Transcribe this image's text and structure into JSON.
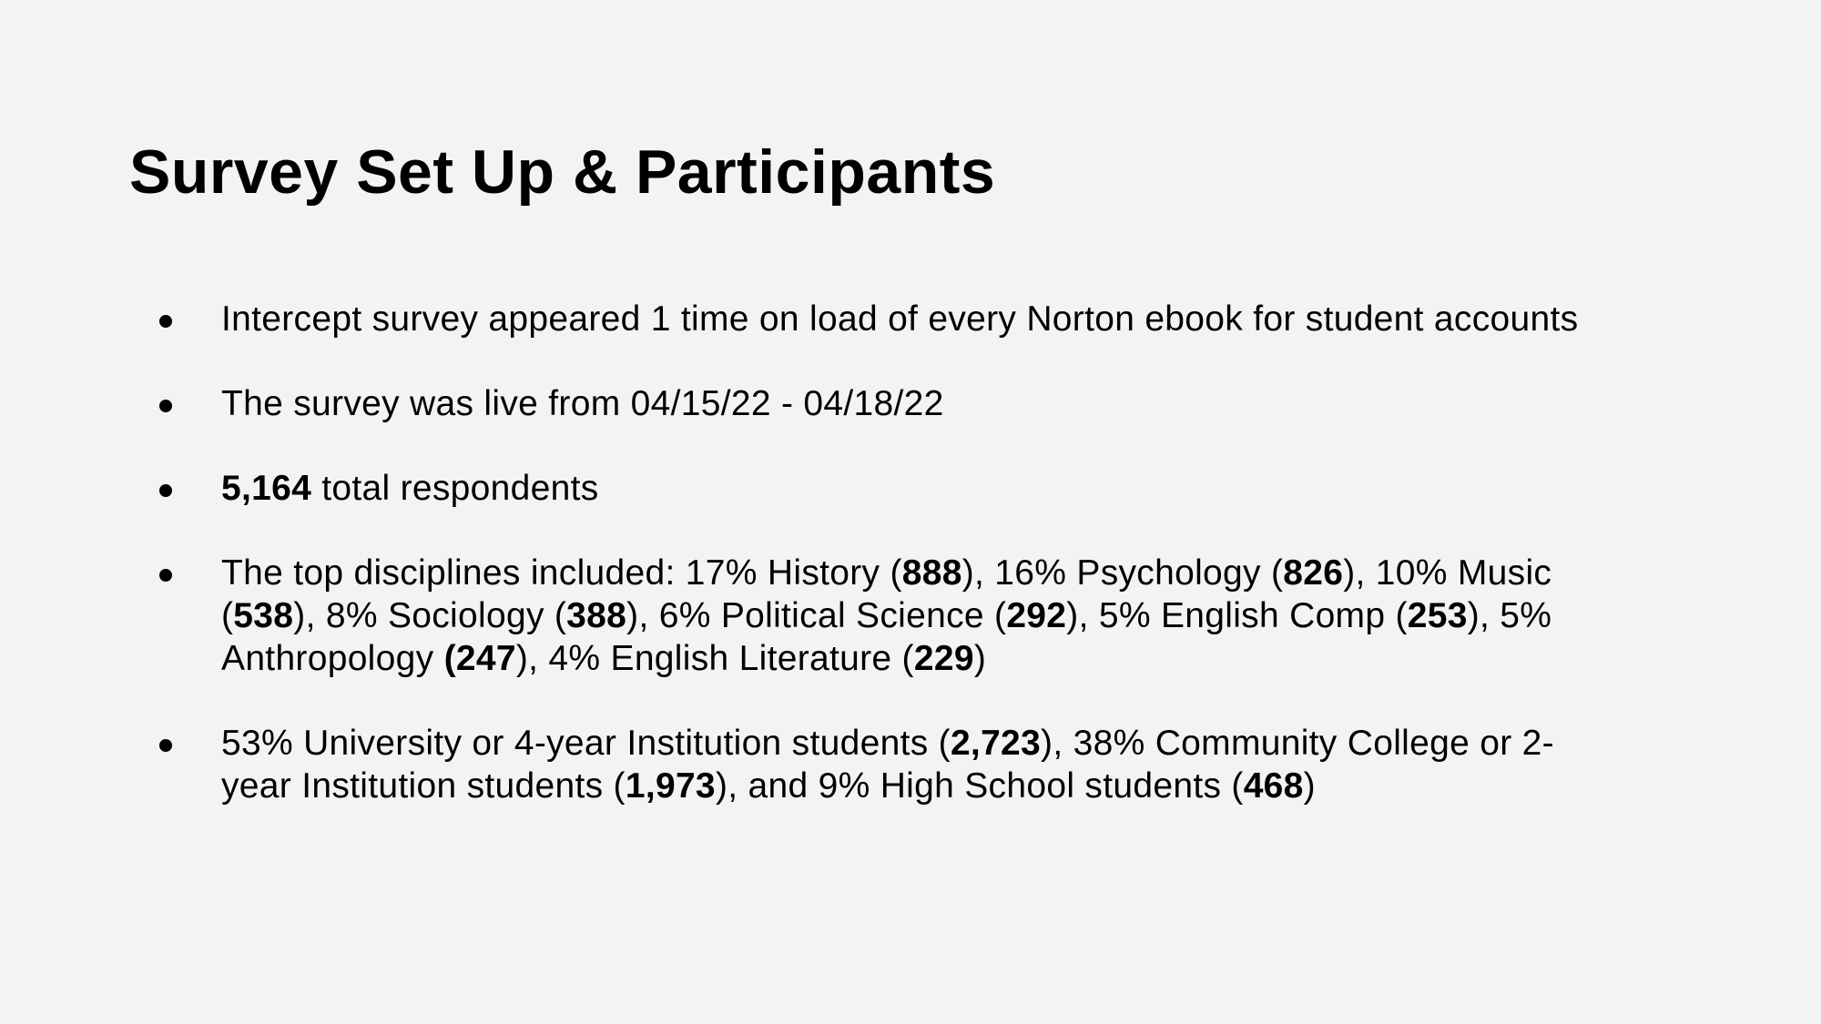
{
  "slide": {
    "title": "Survey Set Up & Participants",
    "bullets": [
      {
        "parts": [
          {
            "text": "Intercept survey appeared 1 time on load of every Norton ebook for student accounts",
            "bold": false
          }
        ]
      },
      {
        "parts": [
          {
            "text": "The survey was live from 04/15/22 - 04/18/22",
            "bold": false
          }
        ]
      },
      {
        "parts": [
          {
            "text": "5,164",
            "bold": true
          },
          {
            "text": " total respondents",
            "bold": false
          }
        ]
      },
      {
        "parts": [
          {
            "text": "The top disciplines included: 17% History (",
            "bold": false
          },
          {
            "text": "888",
            "bold": true
          },
          {
            "text": "), 16% Psychology (",
            "bold": false
          },
          {
            "text": "826",
            "bold": true
          },
          {
            "text": "), 10% Music (",
            "bold": false
          },
          {
            "text": "538",
            "bold": true
          },
          {
            "text": "), 8% Sociology (",
            "bold": false
          },
          {
            "text": "388",
            "bold": true
          },
          {
            "text": "), 6% Political Science (",
            "bold": false
          },
          {
            "text": "292",
            "bold": true
          },
          {
            "text": "), 5% English Comp (",
            "bold": false
          },
          {
            "text": "253",
            "bold": true
          },
          {
            "text": "), 5% Anthropology ",
            "bold": false
          },
          {
            "text": "(247",
            "bold": true
          },
          {
            "text": "),  4% English Literature (",
            "bold": false
          },
          {
            "text": "229",
            "bold": true
          },
          {
            "text": ")",
            "bold": false
          }
        ]
      },
      {
        "parts": [
          {
            "text": "53% University or 4-year Institution students (",
            "bold": false
          },
          {
            "text": "2,723",
            "bold": true
          },
          {
            "text": "), 38% Community College or 2-year Institution students (",
            "bold": false
          },
          {
            "text": "1,973",
            "bold": true
          },
          {
            "text": "), and 9% High School students (",
            "bold": false
          },
          {
            "text": "468",
            "bold": true
          },
          {
            "text": ")",
            "bold": false
          }
        ]
      }
    ]
  }
}
